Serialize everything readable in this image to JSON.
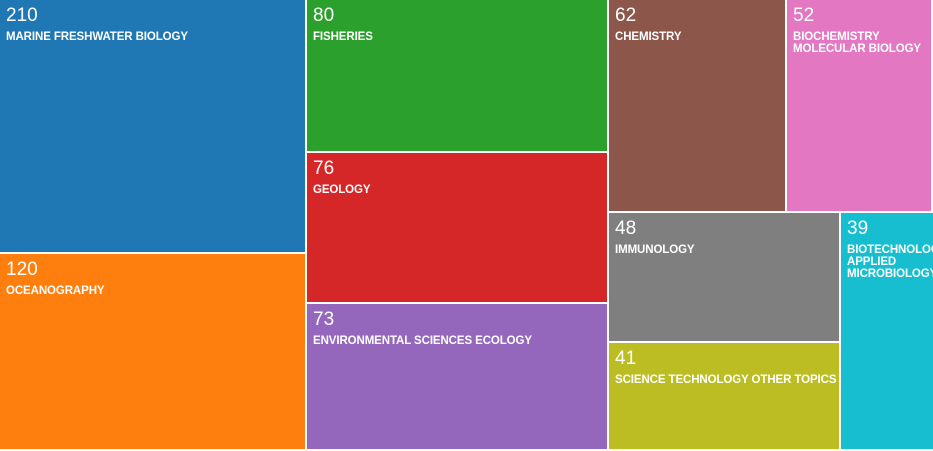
{
  "chart_data": {
    "type": "treemap",
    "items": [
      {
        "value": 210,
        "label": "MARINE FRESHWATER BIOLOGY",
        "color": "#1f77b4"
      },
      {
        "value": 120,
        "label": "OCEANOGRAPHY",
        "color": "#ff7f0e"
      },
      {
        "value": 80,
        "label": "FISHERIES",
        "color": "#2ca02c"
      },
      {
        "value": 76,
        "label": "GEOLOGY",
        "color": "#d62728"
      },
      {
        "value": 73,
        "label": "ENVIRONMENTAL SCIENCES ECOLOGY",
        "color": "#9467bd"
      },
      {
        "value": 62,
        "label": "CHEMISTRY",
        "color": "#8c564b"
      },
      {
        "value": 52,
        "label": "BIOCHEMISTRY\nMOLECULAR BIOLOGY",
        "color": "#e377c2"
      },
      {
        "value": 48,
        "label": "IMMUNOLOGY",
        "color": "#7f7f7f"
      },
      {
        "value": 41,
        "label": "SCIENCE TECHNOLOGY OTHER TOPICS",
        "color": "#bcbd22"
      },
      {
        "value": 39,
        "label": "BIOTECHNOLOGY\nAPPLIED\nMICROBIOLOGY",
        "color": "#17becf"
      }
    ]
  }
}
